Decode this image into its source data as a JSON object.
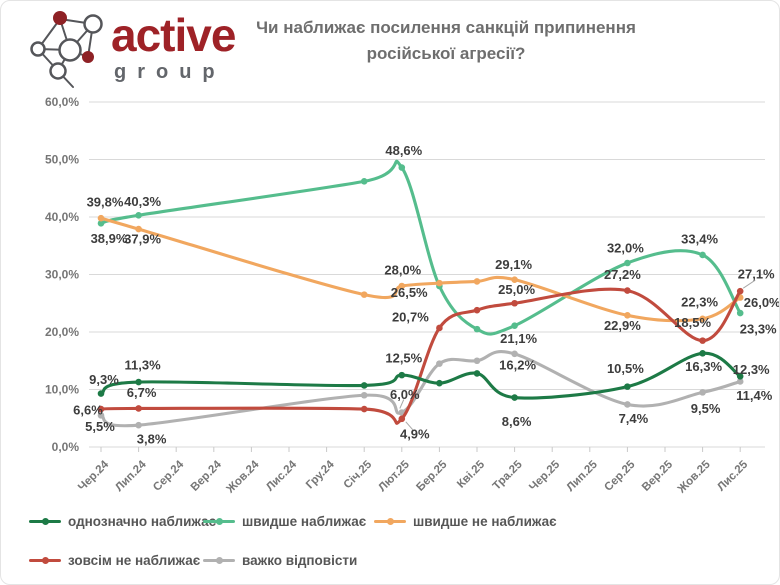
{
  "brand": {
    "name": "active",
    "subname": "group"
  },
  "title": {
    "line1": "Чи наближає посилення санкцій припинення",
    "line2": "російської агресії?"
  },
  "colors": {
    "brand_red": "#9e2227",
    "title_gray": "#6e6e6e",
    "grid": "#d9d9d9",
    "tick_text": "#767676",
    "data_label": "#3d3d3d"
  },
  "chart_data": {
    "type": "line",
    "title": "Чи наближає посилення санкцій припинення російської агресії?",
    "x_ticks": [
      "Чер.24",
      "Лип.24",
      "Сер.24",
      "Вер.24",
      "Жов.24",
      "Лис.24",
      "Гру.24",
      "Січ.25",
      "Лют.25",
      "Бер.25",
      "Кві.25",
      "Тра.25",
      "Чер.25",
      "Лип.25",
      "Сер.25",
      "Вер.25",
      "Жов.25",
      "Лис.25"
    ],
    "y_ticks": [
      "0,0%",
      "10,0%",
      "20,0%",
      "30,0%",
      "40,0%",
      "50,0%",
      "60,0%"
    ],
    "ylim": [
      0,
      60
    ],
    "grid": true,
    "legend_position": "bottom",
    "survey_months": [
      "Чер.24",
      "Лип.24",
      "Січ.25",
      "Лют.25",
      "Бер.25",
      "Кві.25",
      "Тра.25",
      "Сер.25",
      "Жов.25",
      "Лис.25"
    ],
    "point_tick_indices": [
      0,
      1,
      7,
      8,
      9,
      10,
      11,
      14,
      16,
      17
    ],
    "unlabeled_points_estimated": true,
    "series": [
      {
        "name": "однозначно наближає",
        "color": "#1d7a46",
        "values": [
          9.3,
          11.3,
          10.7,
          12.5,
          11.1,
          12.8,
          8.6,
          10.5,
          16.3,
          12.3
        ],
        "labels": [
          "9,3%",
          "11,3%",
          null,
          "12,5%",
          null,
          null,
          "8,6%",
          "10,5%",
          "16,3%",
          "12,3%"
        ]
      },
      {
        "name": "швидше наближає",
        "color": "#55bd8d",
        "values": [
          38.9,
          40.3,
          46.2,
          48.6,
          28.0,
          20.5,
          21.1,
          32.0,
          33.4,
          23.3
        ],
        "labels": [
          "38,9%",
          "40,3%",
          null,
          "48,6%",
          null,
          null,
          "21,1%",
          "32,0%",
          "33,4%",
          "23,3%"
        ]
      },
      {
        "name": "швидше не наближає",
        "color": "#f1a75f",
        "values": [
          39.8,
          37.9,
          26.5,
          28.0,
          28.5,
          28.8,
          29.1,
          22.9,
          22.3,
          26.0
        ],
        "labels": [
          "39,8%",
          "37,9%",
          "26,5%",
          "28,0%",
          null,
          null,
          "29,1%",
          "22,9%",
          "22,3%",
          "26,0%"
        ]
      },
      {
        "name": "зовсім не наближає",
        "color": "#c14b3e",
        "values": [
          6.6,
          6.7,
          6.6,
          4.9,
          20.7,
          23.8,
          25.0,
          27.2,
          18.5,
          27.1
        ],
        "labels": [
          "6,6%",
          "6,7%",
          null,
          "4,9%",
          "20,7%",
          null,
          "25,0%",
          "27,2%",
          "18,5%",
          "27,1%"
        ]
      },
      {
        "name": "важко відповісти",
        "color": "#b1b1b1",
        "values": [
          5.5,
          3.8,
          9.0,
          6.0,
          14.5,
          15.0,
          16.2,
          7.4,
          9.5,
          11.4
        ],
        "labels": [
          "5,5%",
          "3,8%",
          null,
          "6,0%",
          null,
          null,
          "16,2%",
          "7,4%",
          "9,5%",
          "11,4%"
        ]
      }
    ]
  },
  "legend": {
    "note": "same five series as chart"
  }
}
